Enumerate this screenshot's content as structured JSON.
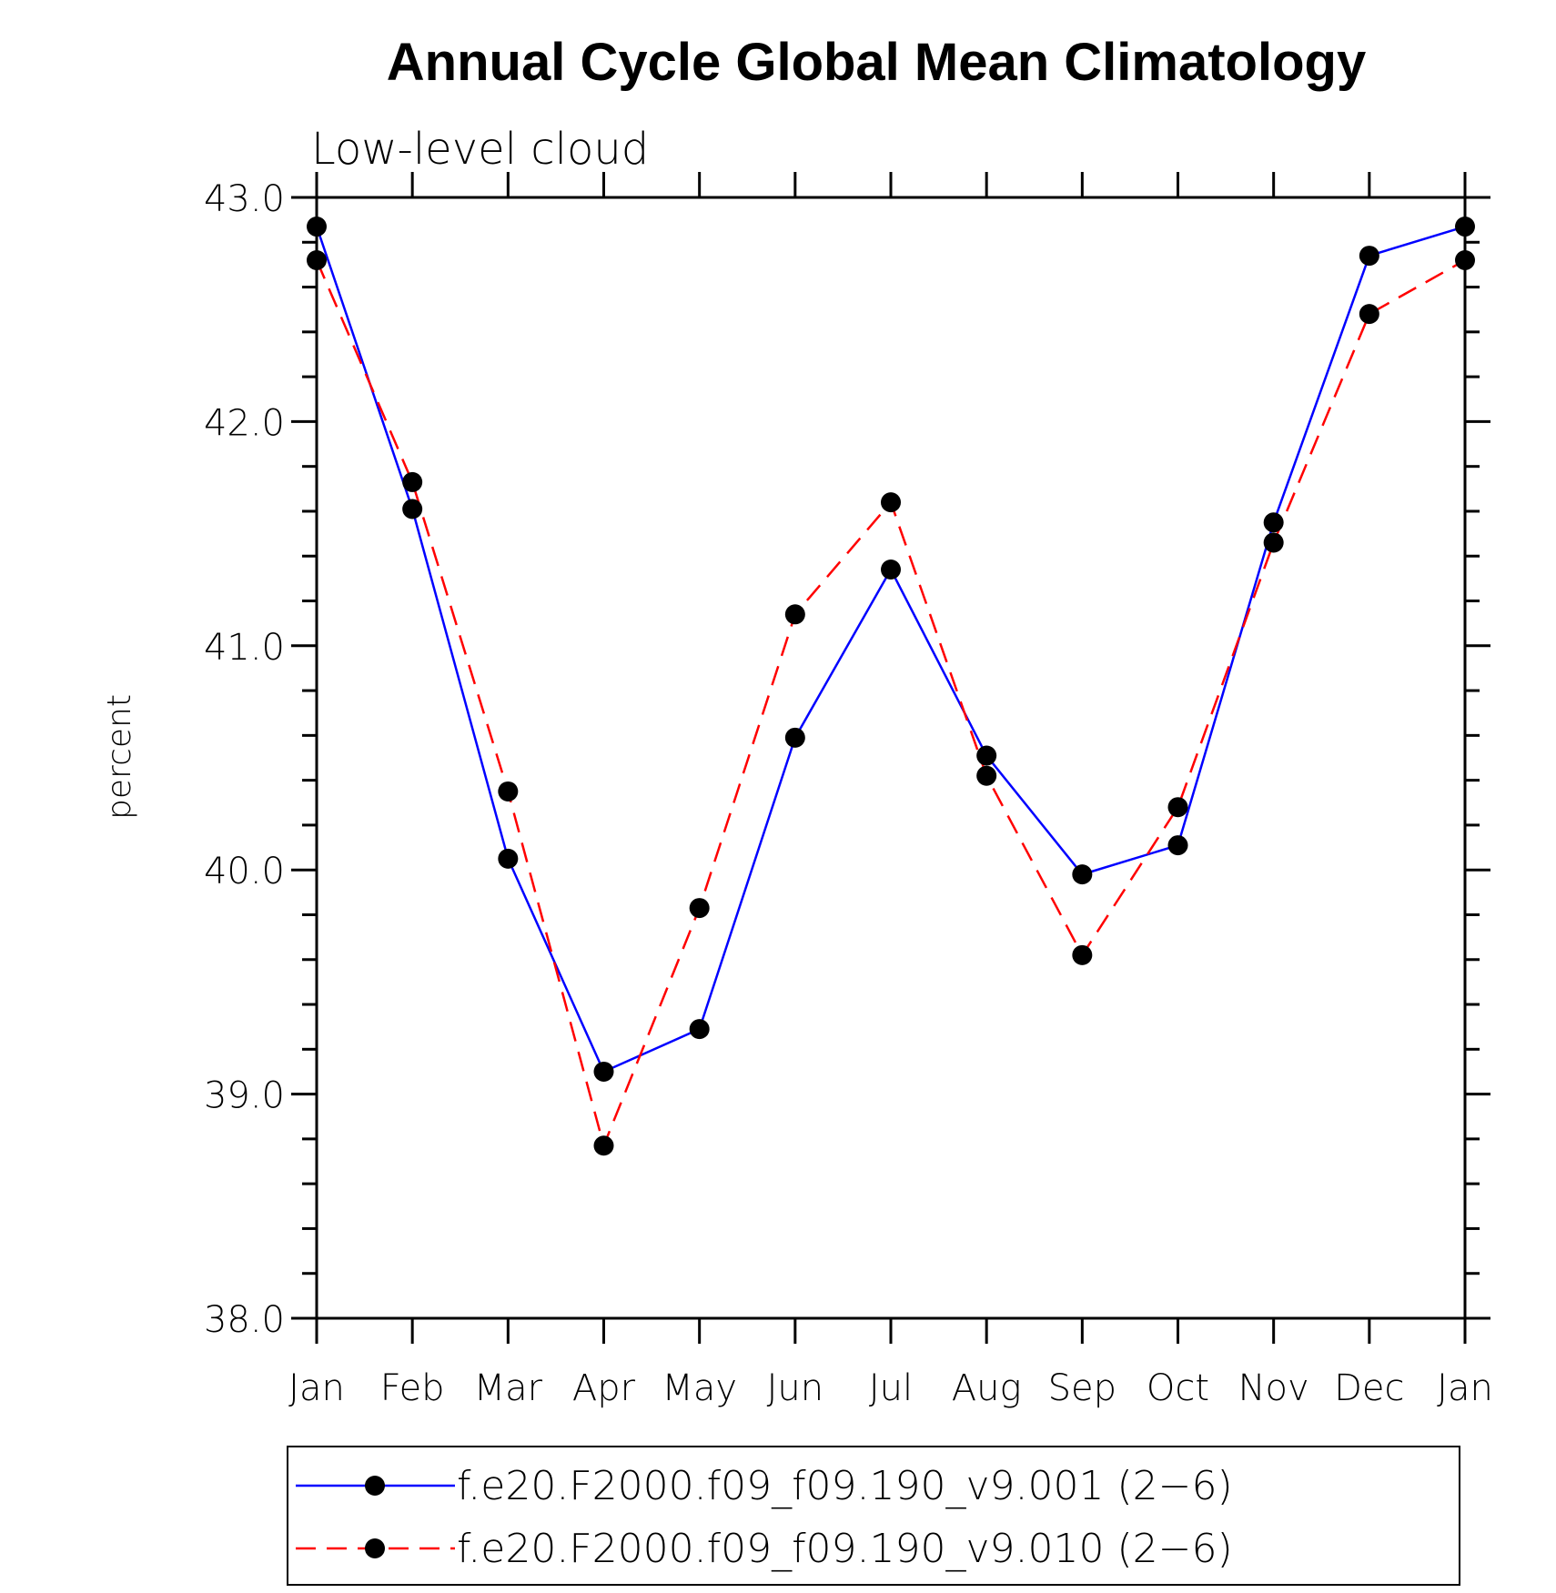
{
  "chart_data": {
    "type": "line",
    "title": "Annual Cycle Global Mean Climatology",
    "subtitle": "Low-level cloud",
    "ylabel": "percent",
    "xlabel": "",
    "categories": [
      "Jan",
      "Feb",
      "Mar",
      "Apr",
      "May",
      "Jun",
      "Jul",
      "Aug",
      "Sep",
      "Oct",
      "Nov",
      "Dec",
      "Jan"
    ],
    "ylim": [
      38.0,
      43.0
    ],
    "yticks": [
      "38.0",
      "39.0",
      "40.0",
      "41.0",
      "42.0",
      "43.0"
    ],
    "y_minor_step": 0.2,
    "grid": false,
    "legend_position": "bottom",
    "series": [
      {
        "name": "f.e20.F2000.f09_f09.190_v9.001 (2−6)",
        "color": "#0000ff",
        "dash": "solid",
        "marker": "filled-circle",
        "values": [
          42.87,
          41.61,
          40.05,
          39.1,
          39.29,
          40.59,
          41.34,
          40.51,
          39.98,
          40.11,
          41.55,
          42.74,
          42.87
        ]
      },
      {
        "name": "f.e20.F2000.f09_f09.190_v9.010 (2−6)",
        "color": "#ff0000",
        "dash": "dashed",
        "marker": "filled-circle",
        "values": [
          42.72,
          41.73,
          40.35,
          38.77,
          39.83,
          41.14,
          41.64,
          40.42,
          39.62,
          40.28,
          41.46,
          42.48,
          42.72
        ]
      }
    ]
  }
}
